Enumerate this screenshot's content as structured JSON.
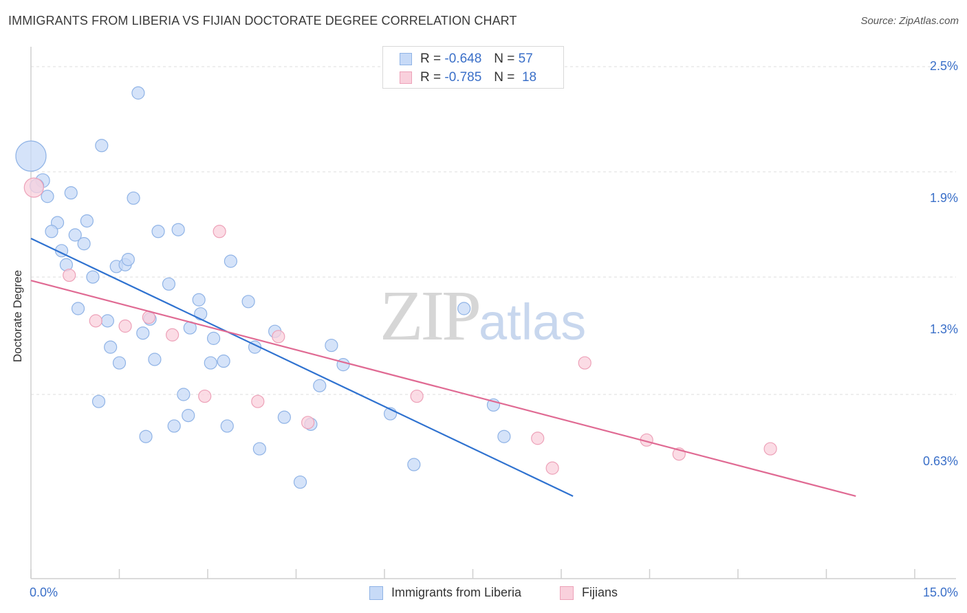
{
  "title": "IMMIGRANTS FROM LIBERIA VS FIJIAN DOCTORATE DEGREE CORRELATION CHART",
  "source": "Source: ZipAtlas.com",
  "watermark": {
    "zip": "ZIP",
    "atlas": "atlas"
  },
  "legend_top": [
    {
      "r_label": "R =",
      "r_value": "-0.648",
      "n_label": "N =",
      "n_value": "57"
    },
    {
      "r_label": "R =",
      "r_value": "-0.785",
      "n_label": "N =",
      "n_value": "18"
    }
  ],
  "legend_bottom": [
    "Immigrants from Liberia",
    "Fijians"
  ],
  "x_tick_min": "0.0%",
  "x_tick_max": "15.0%",
  "y_ticks": [
    "2.5%",
    "1.9%",
    "1.3%",
    "0.63%"
  ],
  "colors": {
    "blue_fill": "#c7daf7",
    "blue_stroke": "#8fb3e6",
    "blue_line": "#2f72d0",
    "pink_fill": "#f9d0dc",
    "pink_stroke": "#eda1b8",
    "pink_line": "#e06a93",
    "grid": "#dedede",
    "axis_text": "#3a6fc8"
  },
  "chart_data": {
    "type": "scatter",
    "title": "IMMIGRANTS FROM LIBERIA VS FIJIAN DOCTORATE DEGREE CORRELATION CHART",
    "xlabel": "",
    "ylabel": "Doctorate Degree",
    "xlim": [
      0,
      15
    ],
    "ylim": [
      0.05,
      2.6
    ],
    "y_gridlines": [
      2.5,
      1.9,
      1.3,
      0.63
    ],
    "series": [
      {
        "name": "Immigrants from Liberia",
        "r": -0.648,
        "n": 57,
        "trend": [
          [
            0,
            1.52
          ],
          [
            9.2,
            0.05
          ]
        ],
        "points": [
          [
            0.0,
            1.99,
            22
          ],
          [
            0.2,
            1.85,
            10
          ],
          [
            0.1,
            1.82,
            10
          ],
          [
            0.28,
            1.76,
            9
          ],
          [
            0.68,
            1.78,
            9
          ],
          [
            1.2,
            2.05,
            9
          ],
          [
            1.82,
            2.35,
            9
          ],
          [
            1.74,
            1.75,
            9
          ],
          [
            0.45,
            1.61,
            9
          ],
          [
            0.35,
            1.56,
            9
          ],
          [
            0.75,
            1.54,
            9
          ],
          [
            0.95,
            1.62,
            9
          ],
          [
            0.9,
            1.49,
            9
          ],
          [
            0.52,
            1.45,
            9
          ],
          [
            0.6,
            1.37,
            9
          ],
          [
            1.45,
            1.36,
            9
          ],
          [
            1.6,
            1.37,
            9
          ],
          [
            1.65,
            1.4,
            9
          ],
          [
            2.16,
            1.56,
            9
          ],
          [
            2.5,
            1.57,
            9
          ],
          [
            3.39,
            1.39,
            9
          ],
          [
            1.05,
            1.3,
            9
          ],
          [
            2.34,
            1.26,
            9
          ],
          [
            0.8,
            1.12,
            9
          ],
          [
            1.3,
            1.05,
            9
          ],
          [
            2.02,
            1.06,
            9
          ],
          [
            2.85,
            1.17,
            9
          ],
          [
            2.88,
            1.09,
            9
          ],
          [
            3.69,
            1.16,
            9
          ],
          [
            4.14,
            0.99,
            9
          ],
          [
            2.7,
            1.01,
            9
          ],
          [
            3.1,
            0.95,
            9
          ],
          [
            1.9,
            0.98,
            9
          ],
          [
            1.35,
            0.9,
            9
          ],
          [
            3.8,
            0.9,
            9
          ],
          [
            5.1,
            0.91,
            9
          ],
          [
            1.5,
            0.81,
            9
          ],
          [
            2.1,
            0.83,
            9
          ],
          [
            3.05,
            0.81,
            9
          ],
          [
            3.27,
            0.82,
            9
          ],
          [
            5.3,
            0.8,
            9
          ],
          [
            7.35,
            1.12,
            9
          ],
          [
            4.9,
            0.68,
            9
          ],
          [
            2.59,
            0.63,
            9
          ],
          [
            1.15,
            0.59,
            9
          ],
          [
            2.67,
            0.51,
            9
          ],
          [
            4.3,
            0.5,
            9
          ],
          [
            4.75,
            0.46,
            9
          ],
          [
            6.1,
            0.52,
            9
          ],
          [
            7.85,
            0.57,
            9
          ],
          [
            2.43,
            0.45,
            9
          ],
          [
            3.33,
            0.45,
            9
          ],
          [
            1.95,
            0.39,
            9
          ],
          [
            8.03,
            0.39,
            9
          ],
          [
            3.88,
            0.32,
            9
          ],
          [
            6.5,
            0.23,
            9
          ],
          [
            4.57,
            0.13,
            9
          ]
        ]
      },
      {
        "name": "Fijians",
        "r": -0.785,
        "n": 18,
        "trend": [
          [
            0,
            1.28
          ],
          [
            14.0,
            0.05
          ]
        ],
        "points": [
          [
            0.05,
            1.81,
            14
          ],
          [
            0.65,
            1.31,
            9
          ],
          [
            1.1,
            1.05,
            9
          ],
          [
            1.6,
            1.02,
            9
          ],
          [
            2.0,
            1.07,
            9
          ],
          [
            2.4,
            0.97,
            9
          ],
          [
            3.2,
            1.56,
            9
          ],
          [
            4.2,
            0.96,
            9
          ],
          [
            2.95,
            0.62,
            9
          ],
          [
            3.85,
            0.59,
            9
          ],
          [
            4.7,
            0.47,
            9
          ],
          [
            6.55,
            0.62,
            9
          ],
          [
            9.4,
            0.81,
            9
          ],
          [
            8.6,
            0.38,
            9
          ],
          [
            8.85,
            0.21,
            9
          ],
          [
            10.45,
            0.37,
            9
          ],
          [
            11.0,
            0.29,
            9
          ],
          [
            12.55,
            0.32,
            9
          ]
        ]
      }
    ],
    "legend": "bottom"
  }
}
